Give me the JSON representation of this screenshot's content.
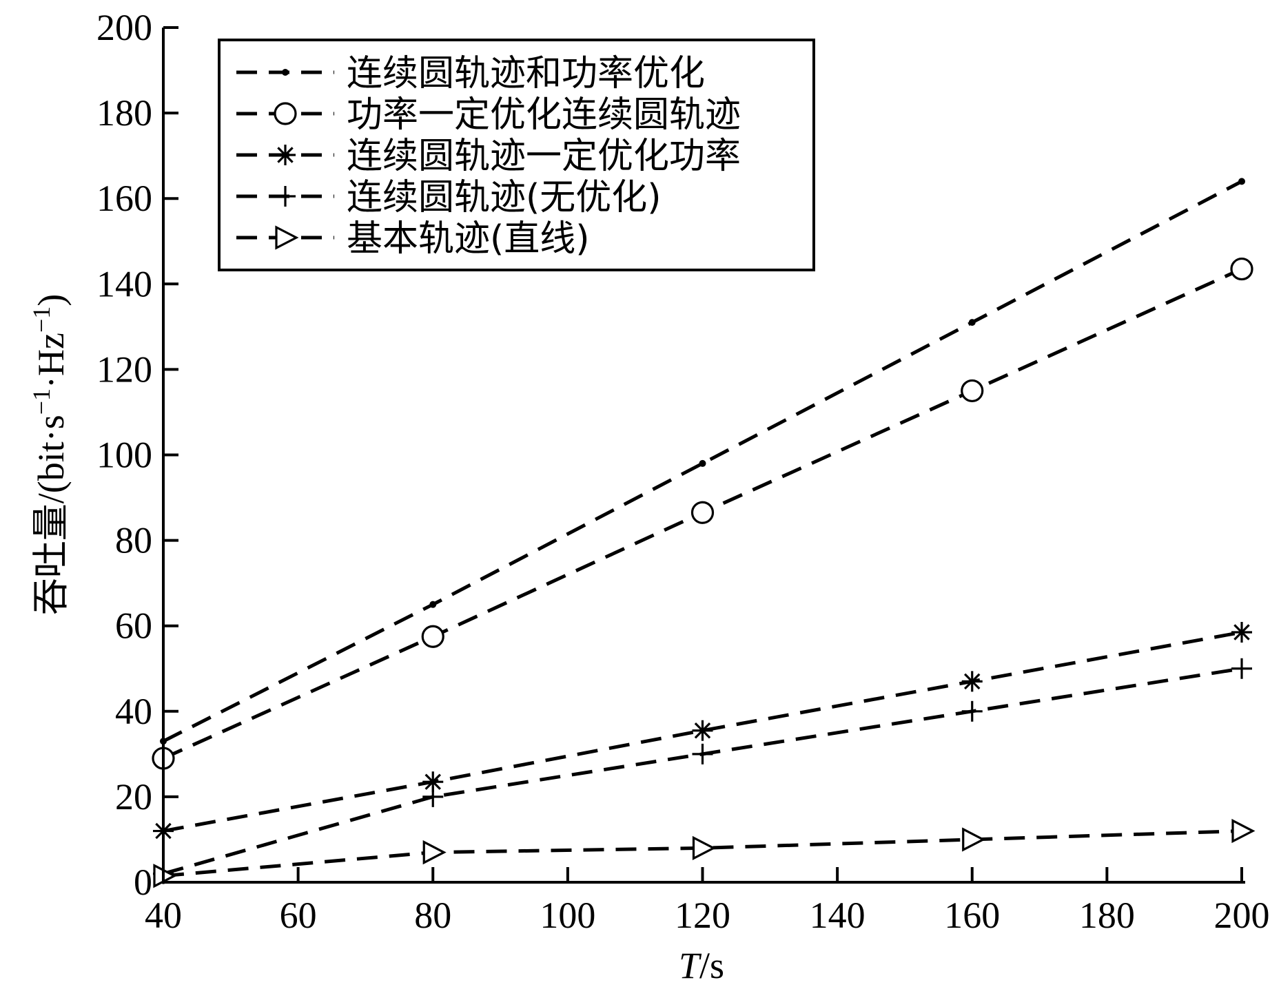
{
  "chart_data": {
    "type": "line",
    "xlabel": "T/s",
    "xlabel_italic": "T",
    "xlabel_rest": "/s",
    "ylabel": "吞吐量/(bit·s⁻¹·Hz⁻¹)",
    "ylabel_main": "吞吐量/(bit·s",
    "ylabel_sup1": "−1",
    "ylabel_mid": "·Hz",
    "ylabel_sup2": "−1",
    "ylabel_close": ")",
    "xlim": [
      40,
      200
    ],
    "ylim": [
      0,
      200
    ],
    "xticks": [
      "40",
      "60",
      "80",
      "100",
      "120",
      "140",
      "160",
      "180",
      "200"
    ],
    "yticks": [
      "0",
      "20",
      "40",
      "60",
      "80",
      "100",
      "120",
      "140",
      "160",
      "180",
      "200"
    ],
    "legend_position": "top-left",
    "grid": false,
    "x": [
      40,
      80,
      120,
      160,
      200
    ],
    "series": [
      {
        "name": "连续圆轨迹和功率优化",
        "marker": "dot",
        "values": [
          33,
          65,
          98,
          131,
          164
        ]
      },
      {
        "name": "功率一定优化连续圆轨迹",
        "marker": "circle",
        "values": [
          29,
          57.5,
          86.5,
          115,
          143.5
        ]
      },
      {
        "name": "连续圆轨迹一定优化功率",
        "marker": "asterisk",
        "values": [
          12,
          23.5,
          35.5,
          47,
          58.5
        ]
      },
      {
        "name": "连续圆轨迹(无优化)",
        "marker": "plus",
        "values": [
          2,
          20,
          30,
          40,
          50
        ]
      },
      {
        "name": "基本轨迹(直线)",
        "marker": "triangle-right",
        "values": [
          1.5,
          7,
          8,
          10,
          12
        ]
      }
    ]
  }
}
